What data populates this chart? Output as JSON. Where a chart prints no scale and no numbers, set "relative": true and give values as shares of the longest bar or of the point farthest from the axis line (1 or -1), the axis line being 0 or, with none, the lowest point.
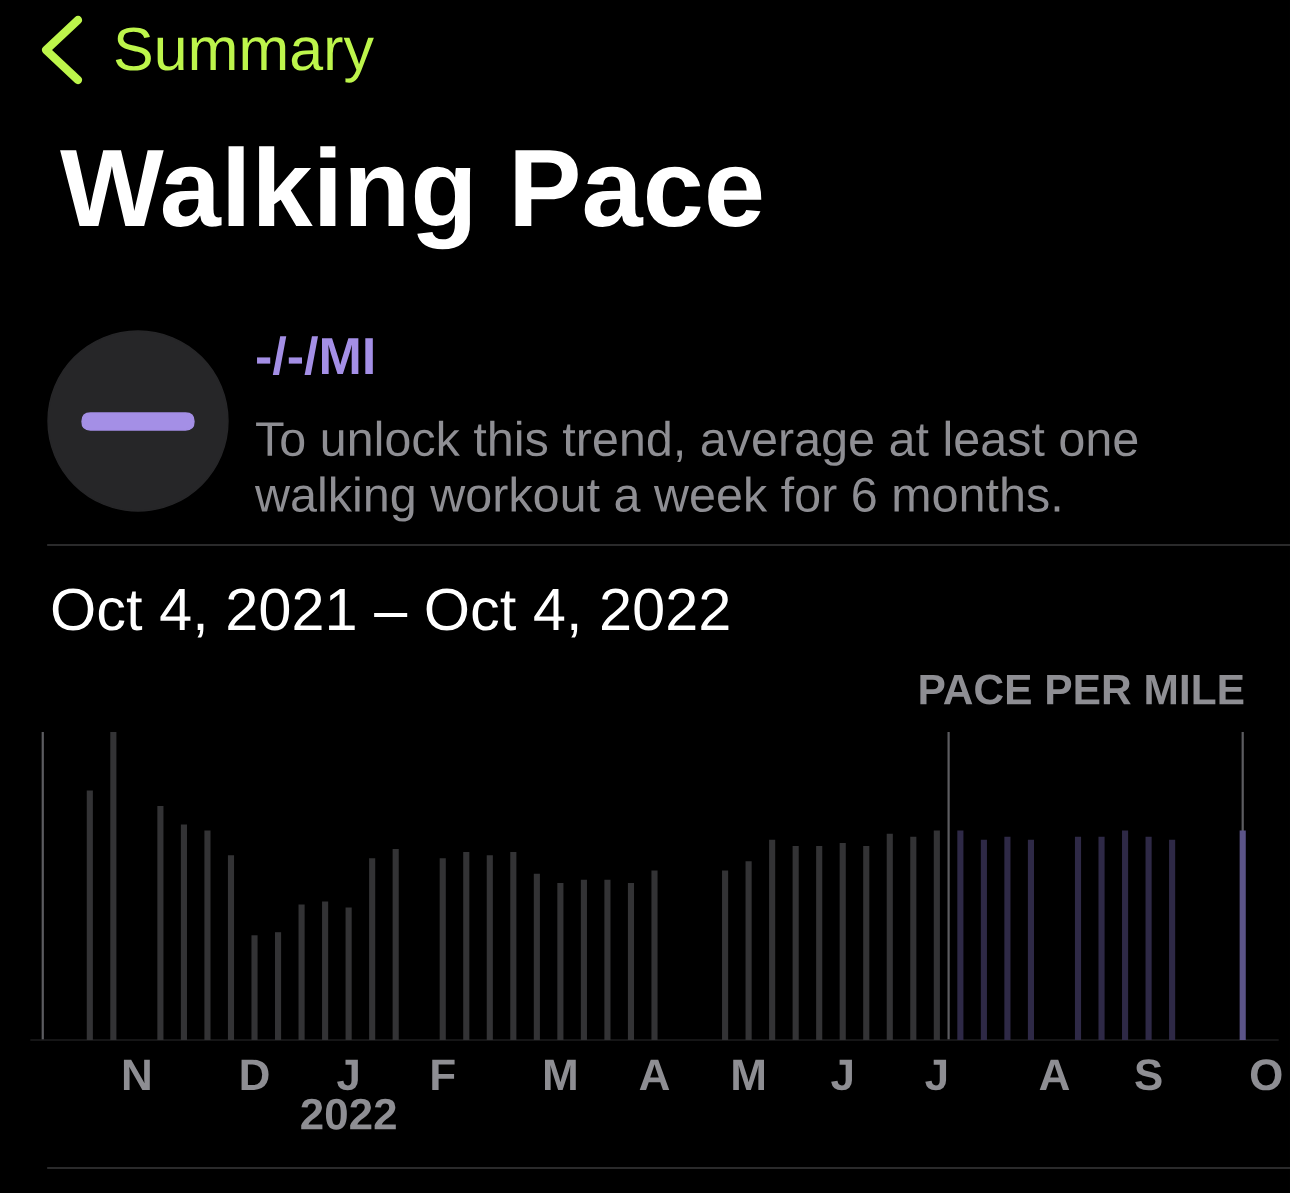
{
  "chart_data": {
    "type": "bar",
    "relative": true,
    "title": "Walking Pace",
    "subtitle": "Oct 4, 2021 – Oct 4, 2022",
    "ylabel": "PACE PER MILE",
    "annotations": [
      "Summary",
      "-/-/MI",
      "To unlock this trend, average at least one walking workout a week for 6 months."
    ],
    "categories": [
      null,
      null,
      null,
      null,
      "N",
      null,
      null,
      null,
      null,
      "D",
      null,
      null,
      null,
      "J\n2022",
      null,
      null,
      null,
      "F",
      null,
      null,
      null,
      null,
      "M",
      null,
      null,
      null,
      "A",
      null,
      null,
      null,
      "M",
      null,
      null,
      null,
      "J",
      null,
      null,
      null,
      "J",
      null,
      null,
      null,
      null,
      "A",
      null,
      null,
      null,
      "S",
      null,
      null,
      null,
      null,
      "O"
    ],
    "values": [
      null,
      null,
      0.81,
      1.0,
      null,
      0.76,
      0.7,
      0.68,
      0.6,
      0.34,
      0.35,
      0.44,
      0.45,
      0.43,
      0.59,
      0.62,
      null,
      0.59,
      0.61,
      0.6,
      0.61,
      0.54,
      0.51,
      0.52,
      0.52,
      0.51,
      0.55,
      null,
      null,
      0.55,
      0.58,
      0.65,
      0.63,
      0.63,
      0.64,
      0.63,
      0.67,
      0.66,
      0.68,
      0.68,
      0.65,
      0.66,
      0.65,
      null,
      0.66,
      0.66,
      0.68,
      0.66,
      0.65,
      null,
      null,
      0.68,
      null
    ],
    "colors": [
      "#333335",
      "#333335",
      "#333335",
      "#333335",
      "#333335",
      "#333335",
      "#333335",
      "#333335",
      "#333335",
      "#333335",
      "#333335",
      "#333335",
      "#333335",
      "#333335",
      "#333335",
      "#333335",
      "#333335",
      "#333335",
      "#333335",
      "#333335",
      "#333335",
      "#333335",
      "#333335",
      "#333335",
      "#333335",
      "#333335",
      "#333335",
      "#333335",
      "#333335",
      "#333335",
      "#333335",
      "#333335",
      "#333335",
      "#333335",
      "#333335",
      "#333335",
      "#333335",
      "#333335",
      "#333335",
      "#2e2946",
      "#2e2946",
      "#2e2946",
      "#2e2946",
      "#2e2946",
      "#2e2946",
      "#2e2946",
      "#2e2946",
      "#2e2946",
      "#2e2946",
      "#2e2946",
      "#2e2946",
      "#5b5488",
      "#2e2946"
    ]
  }
}
